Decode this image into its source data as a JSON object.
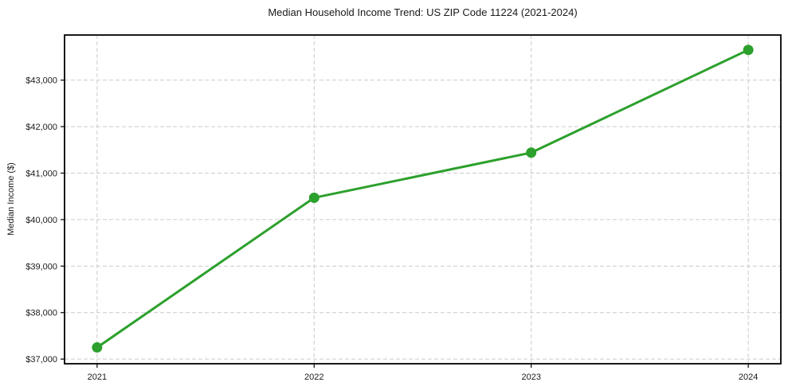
{
  "chart_data": {
    "type": "line",
    "title": "Median Household Income Trend: US ZIP Code 11224 (2021-2024)",
    "xlabel": "",
    "ylabel": "Median Income ($)",
    "x": [
      2021,
      2022,
      2023,
      2024
    ],
    "series": [
      {
        "name": "Median Household Income",
        "values": [
          37250,
          40470,
          41440,
          43650
        ]
      }
    ],
    "xtick_labels": [
      "2021",
      "2022",
      "2023",
      "2024"
    ],
    "yticks": [
      37000,
      38000,
      39000,
      40000,
      41000,
      42000,
      43000
    ],
    "ytick_labels": [
      "$37,000",
      "$38,000",
      "$39,000",
      "$40,000",
      "$41,000",
      "$42,000",
      "$43,000"
    ],
    "xlim": [
      2020.85,
      2024.15
    ],
    "ylim": [
      36900,
      43970
    ],
    "grid": true,
    "legend": "none",
    "colors": {
      "line": "#2ca02c",
      "marker": "#2ca02c",
      "grid": "#cccccc",
      "spine": "#000000",
      "text": "#1a1a1a",
      "background": "#ffffff"
    }
  }
}
